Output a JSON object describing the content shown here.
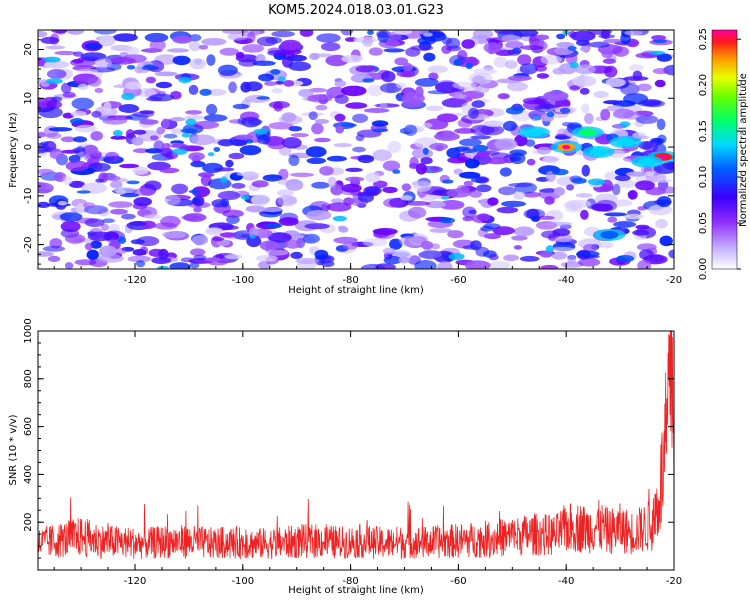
{
  "figure": {
    "title": "KOM5.2024.018.03.01.G23"
  },
  "chart_data": [
    {
      "type": "heatmap",
      "title": "KOM5.2024.018.03.01.G23",
      "xlabel": "Height of straight line (km)",
      "ylabel": "Frequency (Hz)",
      "xlim": [
        -138,
        -20
      ],
      "ylim": [
        -25,
        24
      ],
      "x_ticks": [
        -120,
        -100,
        -80,
        -60,
        -40,
        -20
      ],
      "y_ticks": [
        -20,
        -10,
        0,
        10,
        20
      ],
      "colorbar": {
        "label": "Normalized spectral amplitude",
        "range": [
          0.0,
          0.26
        ],
        "ticks": [
          "0.00",
          "0.05",
          "0.10",
          "0.15",
          "0.20",
          "0.25"
        ]
      },
      "background_level": 0.04,
      "hotspots": [
        {
          "x": -40,
          "y": 0,
          "value": 0.21
        },
        {
          "x": -22,
          "y": -2,
          "value": 0.25
        },
        {
          "x": -36,
          "y": 3,
          "value": 0.14
        },
        {
          "x": -29,
          "y": 1,
          "value": 0.13
        },
        {
          "x": -46,
          "y": 3,
          "value": 0.11
        },
        {
          "x": -32,
          "y": -18,
          "value": 0.1
        },
        {
          "x": -25,
          "y": -3,
          "value": 0.13
        },
        {
          "x": -34,
          "y": -1,
          "value": 0.11
        }
      ],
      "colors": [
        "#ffffff",
        "#c9b8ff",
        "#8e2bff",
        "#6b00ff",
        "#0000ff",
        "#00c8ff",
        "#00ff3c",
        "#c8ff00",
        "#ff9a00",
        "#ff0000",
        "#ff00a0"
      ]
    },
    {
      "type": "line",
      "title": "",
      "xlabel": "Height of straight line (km)",
      "ylabel": "SNR (10 * v/v)",
      "xlim": [
        -138,
        -20
      ],
      "ylim": [
        0,
        1000
      ],
      "x_ticks": [
        -120,
        -100,
        -80,
        -60,
        -40,
        -20
      ],
      "y_ticks": [
        200,
        400,
        600,
        800,
        1000
      ],
      "series": [
        {
          "color": "#ee2222",
          "x": [
            -138,
            -134,
            -130,
            -126,
            -122,
            -118,
            -114,
            -110,
            -106,
            -102,
            -98,
            -94,
            -90,
            -86,
            -82,
            -78,
            -74,
            -70,
            -66,
            -62,
            -58,
            -54,
            -50,
            -46,
            -42,
            -40,
            -38,
            -36,
            -34,
            -32,
            -30,
            -28,
            -26,
            -24,
            -23,
            -22,
            -21,
            -20.5,
            -20
          ],
          "y": [
            110,
            125,
            140,
            120,
            115,
            110,
            120,
            118,
            112,
            115,
            110,
            112,
            118,
            122,
            115,
            120,
            112,
            118,
            115,
            120,
            125,
            130,
            140,
            150,
            145,
            175,
            180,
            170,
            185,
            160,
            175,
            155,
            170,
            190,
            280,
            420,
            640,
            980,
            560
          ]
        }
      ]
    }
  ]
}
